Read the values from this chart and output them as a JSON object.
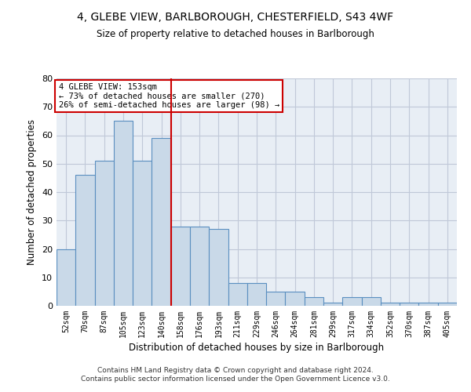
{
  "title_line1": "4, GLEBE VIEW, BARLBOROUGH, CHESTERFIELD, S43 4WF",
  "title_line2": "Size of property relative to detached houses in Barlborough",
  "xlabel": "Distribution of detached houses by size in Barlborough",
  "ylabel": "Number of detached properties",
  "categories": [
    "52sqm",
    "70sqm",
    "87sqm",
    "105sqm",
    "123sqm",
    "140sqm",
    "158sqm",
    "176sqm",
    "193sqm",
    "211sqm",
    "229sqm",
    "246sqm",
    "264sqm",
    "281sqm",
    "299sqm",
    "317sqm",
    "334sqm",
    "352sqm",
    "370sqm",
    "387sqm",
    "405sqm"
  ],
  "values": [
    20,
    46,
    51,
    65,
    51,
    59,
    28,
    28,
    27,
    8,
    8,
    5,
    5,
    3,
    1,
    3,
    3,
    1,
    1,
    1,
    1
  ],
  "bar_color": "#c9d9e8",
  "bar_edge_color": "#5a8fc0",
  "vline_color": "#cc0000",
  "vline_x": 5.5,
  "annotation_text": "4 GLEBE VIEW: 153sqm\n← 73% of detached houses are smaller (270)\n26% of semi-detached houses are larger (98) →",
  "annotation_box_color": "#ffffff",
  "annotation_box_edge_color": "#cc0000",
  "ylim": [
    0,
    80
  ],
  "yticks": [
    0,
    10,
    20,
    30,
    40,
    50,
    60,
    70,
    80
  ],
  "grid_color": "#c0c8d8",
  "background_color": "#e8eef5",
  "footer_line1": "Contains HM Land Registry data © Crown copyright and database right 2024.",
  "footer_line2": "Contains public sector information licensed under the Open Government Licence v3.0."
}
